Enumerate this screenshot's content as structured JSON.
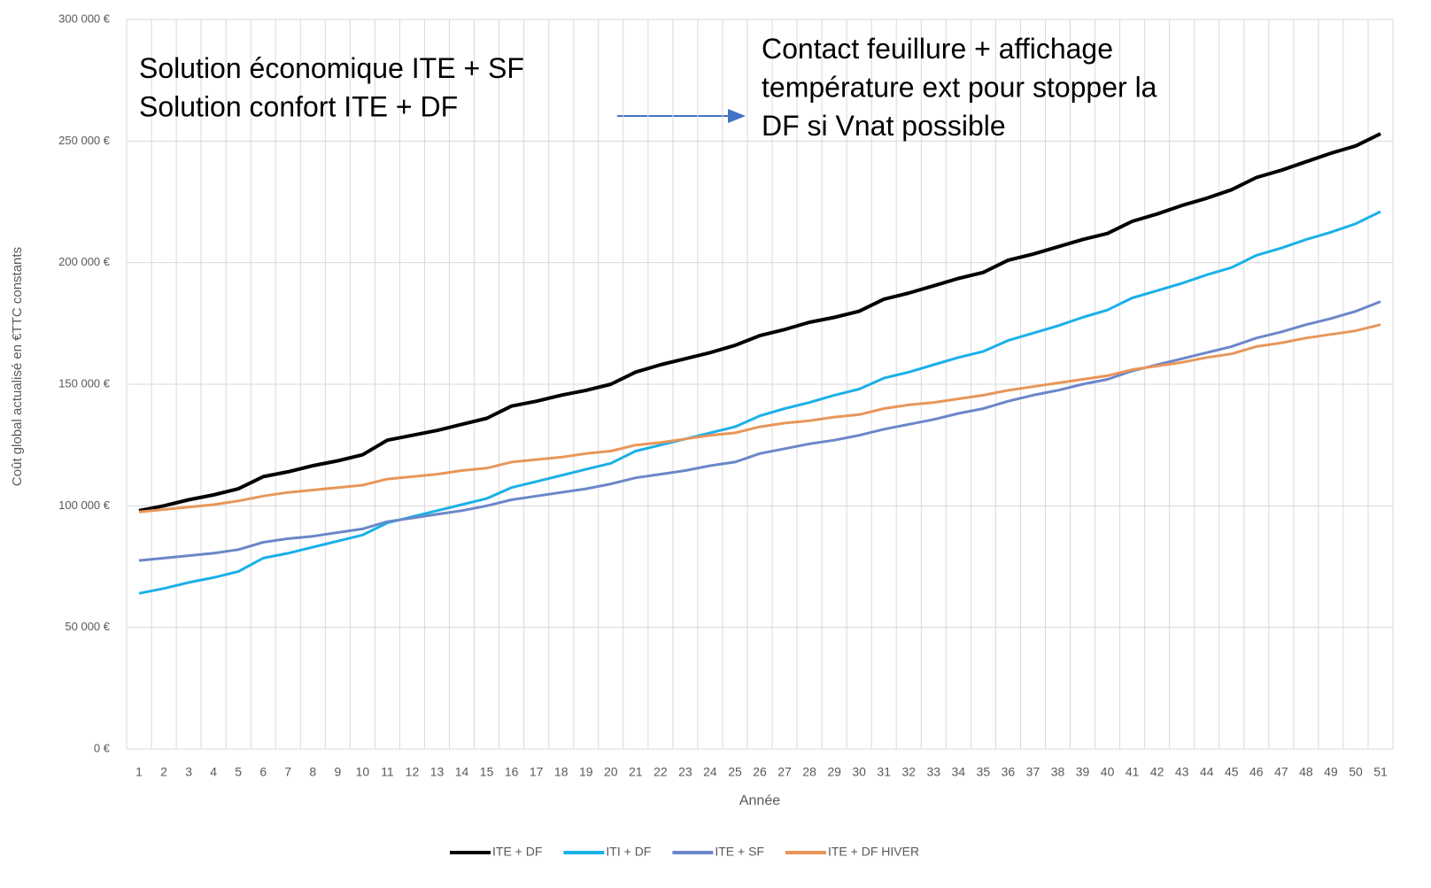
{
  "chart_data": {
    "type": "line",
    "xlabel": "Année",
    "ylabel": "Coût global actualisé en €TTC constants",
    "annotations": [
      {
        "lines": [
          "Solution économique ITE + SF",
          "Solution confort ITE + DF"
        ]
      },
      {
        "lines": [
          "Contact feuillure + affichage",
          "température ext pour stopper la",
          "DF si Vnat possible"
        ]
      }
    ],
    "categories": [
      1,
      2,
      3,
      4,
      5,
      6,
      7,
      8,
      9,
      10,
      11,
      12,
      13,
      14,
      15,
      16,
      17,
      18,
      19,
      20,
      21,
      22,
      23,
      24,
      25,
      26,
      27,
      28,
      29,
      30,
      31,
      32,
      33,
      34,
      35,
      36,
      37,
      38,
      39,
      40,
      41,
      42,
      43,
      44,
      45,
      46,
      47,
      48,
      49,
      50,
      51
    ],
    "ylim": [
      0,
      300000
    ],
    "yticks": [
      {
        "value": 0,
        "label": "0 €"
      },
      {
        "value": 50000,
        "label": "50 000 €"
      },
      {
        "value": 100000,
        "label": "100 000 €"
      },
      {
        "value": 150000,
        "label": "150 000 €"
      },
      {
        "value": 200000,
        "label": "200 000 €"
      },
      {
        "value": 250000,
        "label": "250 000 €"
      },
      {
        "value": 300000,
        "label": "300 000 €"
      }
    ],
    "grid": true,
    "legend": "bottom",
    "series": [
      {
        "name": "ITE + DF",
        "color": "#000000",
        "values": [
          98000,
          100000,
          102500,
          104500,
          107000,
          112000,
          114000,
          116500,
          118500,
          121000,
          127000,
          129000,
          131000,
          133500,
          136000,
          141000,
          143000,
          145500,
          147500,
          150000,
          155000,
          158000,
          160500,
          163000,
          166000,
          170000,
          172500,
          175500,
          177500,
          180000,
          185000,
          187500,
          190500,
          193500,
          196000,
          201000,
          203500,
          206500,
          209500,
          212000,
          217000,
          220000,
          223500,
          226500,
          230000,
          235000,
          238000,
          241500,
          245000,
          248000,
          253000
        ]
      },
      {
        "name": "ITI + DF",
        "color": "#1ab0e8",
        "values": [
          64000,
          66000,
          68500,
          70500,
          73000,
          78500,
          80500,
          83000,
          85500,
          88000,
          93000,
          95500,
          98000,
          100500,
          103000,
          107500,
          110000,
          112500,
          115000,
          117500,
          122500,
          125000,
          127500,
          130000,
          132500,
          137000,
          140000,
          142500,
          145500,
          148000,
          152500,
          155000,
          158000,
          161000,
          163500,
          168000,
          171000,
          174000,
          177500,
          180500,
          185500,
          188500,
          191500,
          195000,
          198000,
          203000,
          206000,
          209500,
          212500,
          216000,
          221000
        ]
      },
      {
        "name": "ITE + SF",
        "color": "#6b87c9",
        "values": [
          77500,
          78500,
          79500,
          80500,
          82000,
          85000,
          86500,
          87500,
          89000,
          90500,
          93500,
          95000,
          96500,
          98000,
          100000,
          102500,
          104000,
          105500,
          107000,
          109000,
          111500,
          113000,
          114500,
          116500,
          118000,
          121500,
          123500,
          125500,
          127000,
          129000,
          131500,
          133500,
          135500,
          138000,
          140000,
          143000,
          145500,
          147500,
          150000,
          152000,
          155500,
          158000,
          160500,
          163000,
          165500,
          169000,
          171500,
          174500,
          177000,
          180000,
          184000
        ]
      },
      {
        "name": "ITE + DF HIVER",
        "color": "#e8965a",
        "values": [
          97500,
          98500,
          99500,
          100500,
          102000,
          104000,
          105500,
          106500,
          107500,
          108500,
          111000,
          112000,
          113000,
          114500,
          115500,
          118000,
          119000,
          120000,
          121500,
          122500,
          125000,
          126000,
          127500,
          129000,
          130000,
          132500,
          134000,
          135000,
          136500,
          137500,
          140000,
          141500,
          142500,
          144000,
          145500,
          147500,
          149000,
          150500,
          152000,
          153500,
          156000,
          157500,
          159000,
          161000,
          162500,
          165500,
          167000,
          169000,
          170500,
          172000,
          174500
        ]
      }
    ]
  }
}
